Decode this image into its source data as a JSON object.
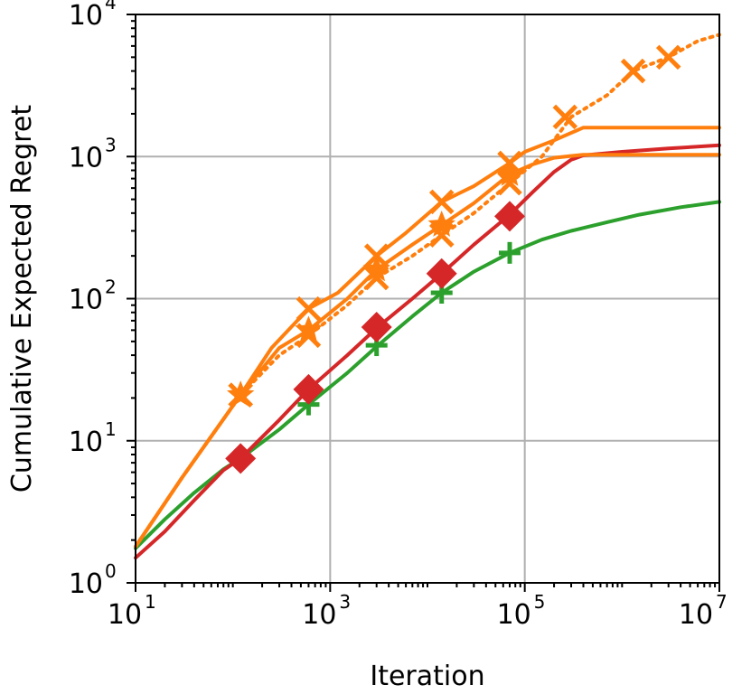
{
  "chart_data": {
    "type": "line",
    "title": "",
    "xlabel": "Iteration",
    "ylabel": "Cumulative Expected Regret",
    "xscale": "log",
    "yscale": "log",
    "xlim": [
      10,
      10000000
    ],
    "ylim": [
      1,
      10000
    ],
    "grid": true,
    "legend": "none",
    "x_ticks": [
      {
        "value": 10,
        "base": "10",
        "exp": "1"
      },
      {
        "value": 1000,
        "base": "10",
        "exp": "3"
      },
      {
        "value": 100000,
        "base": "10",
        "exp": "5"
      },
      {
        "value": 10000000,
        "base": "10",
        "exp": "7"
      }
    ],
    "y_ticks": [
      {
        "value": 1,
        "base": "10",
        "exp": "0"
      },
      {
        "value": 10,
        "base": "10",
        "exp": "1"
      },
      {
        "value": 100,
        "base": "10",
        "exp": "2"
      },
      {
        "value": 1000,
        "base": "10",
        "exp": "3"
      },
      {
        "value": 10000,
        "base": "10",
        "exp": "4"
      }
    ],
    "series": [
      {
        "color": "#2ca02c",
        "marker": "plus",
        "dashed": false,
        "x": [
          10,
          20,
          40,
          80,
          120,
          300,
          600,
          1500,
          3000,
          7000,
          14000,
          30000,
          70000,
          150000,
          300000,
          700000,
          1500000,
          4000000,
          10000000
        ],
        "y": [
          1.75,
          2.8,
          4.3,
          6.3,
          7.5,
          12,
          18,
          30,
          46,
          75,
          110,
          155,
          210,
          260,
          300,
          345,
          390,
          440,
          480
        ],
        "marker_x": [
          120,
          600,
          3000,
          14000,
          70000
        ],
        "marker_y": [
          7.5,
          18,
          47,
          110,
          210
        ]
      },
      {
        "color": "#d62728",
        "marker": "diamond",
        "dashed": false,
        "x": [
          10,
          20,
          40,
          80,
          120,
          300,
          600,
          1500,
          3000,
          7000,
          14000,
          30000,
          70000,
          120000,
          200000,
          300000,
          400000,
          1000000,
          3000000,
          10000000
        ],
        "y": [
          1.5,
          2.3,
          3.8,
          6.2,
          7.5,
          14,
          23,
          40,
          62,
          100,
          150,
          240,
          390,
          560,
          780,
          950,
          1020,
          1080,
          1140,
          1200
        ],
        "marker_x": [
          120,
          600,
          3000,
          14000,
          70000
        ],
        "marker_y": [
          7.5,
          23,
          63,
          150,
          380
        ]
      },
      {
        "color": "#ff7f0e",
        "marker": "x",
        "dashed": false,
        "x": [
          10,
          30,
          120,
          250,
          600,
          1200,
          3000,
          6000,
          14000,
          30000,
          70000,
          100000,
          200000,
          400000,
          1000000,
          10000000
        ],
        "y": [
          1.8,
          5.5,
          21,
          45,
          85,
          110,
          200,
          290,
          480,
          620,
          900,
          1080,
          1300,
          1600,
          1600,
          1600
        ],
        "marker_x": [
          120,
          600,
          3000,
          14000,
          70000
        ],
        "marker_y": [
          21,
          85,
          200,
          480,
          900
        ]
      },
      {
        "color": "#ff7f0e",
        "marker": "star",
        "dashed": false,
        "x": [
          10,
          30,
          120,
          300,
          600,
          1500,
          3000,
          7000,
          14000,
          30000,
          70000,
          120000,
          200000,
          400000,
          1000000,
          10000000
        ],
        "y": [
          1.8,
          5.5,
          21,
          45,
          60,
          100,
          160,
          240,
          330,
          470,
          750,
          880,
          980,
          1030,
          1030,
          1030
        ],
        "marker_x": [
          120,
          600,
          3000,
          14000,
          70000
        ],
        "marker_y": [
          21,
          60,
          160,
          330,
          750
        ]
      },
      {
        "color": "#ff7f0e",
        "marker": "x",
        "dashed": true,
        "x": [
          10,
          30,
          120,
          300,
          600,
          1500,
          3000,
          7000,
          14000,
          30000,
          70000,
          150000,
          300000,
          700000,
          1300000,
          3000000,
          6000000,
          10000000
        ],
        "y": [
          1.8,
          5.5,
          21,
          40,
          55,
          90,
          140,
          200,
          280,
          400,
          650,
          1000,
          1900,
          2700,
          4000,
          5000,
          6500,
          7200
        ],
        "marker_x": [
          120,
          600,
          3000,
          14000,
          70000,
          260000,
          1300000,
          3000000
        ],
        "marker_y": [
          21,
          55,
          140,
          280,
          650,
          1900,
          4000,
          5000
        ]
      }
    ]
  }
}
